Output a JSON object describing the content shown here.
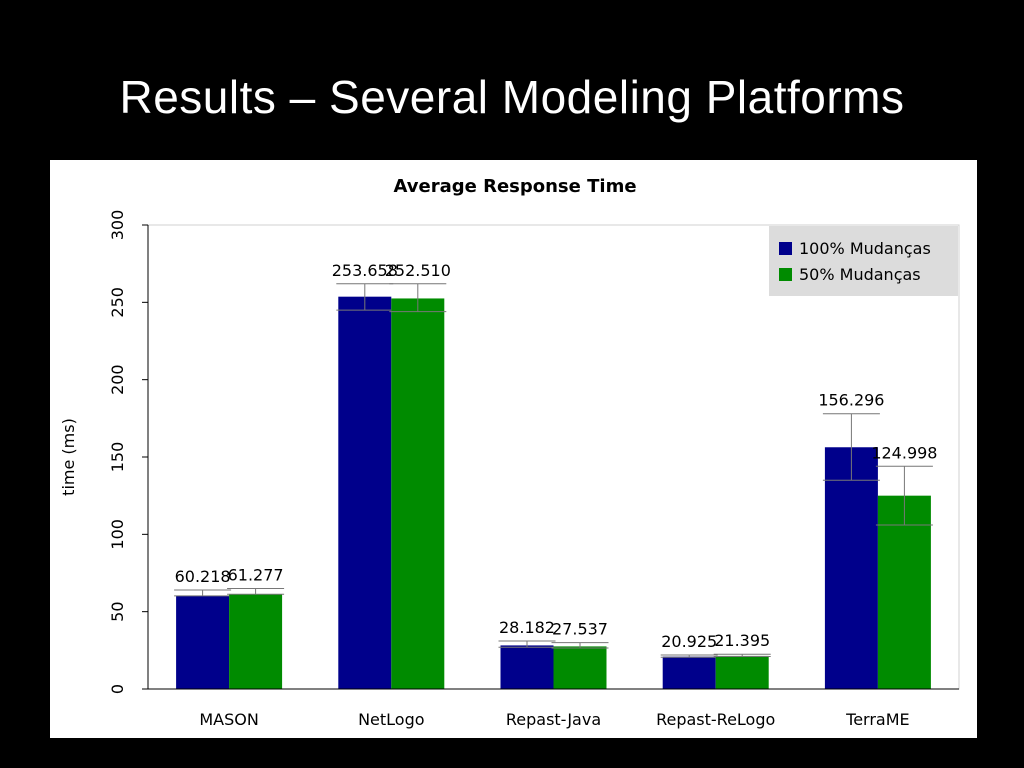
{
  "slide": {
    "title": "Results – Several Modeling Platforms"
  },
  "chart_data": {
    "type": "bar",
    "title": "Average Response Time",
    "xlabel": "",
    "ylabel": "time (ms)",
    "ylim": [
      0,
      300
    ],
    "yticks": [
      0,
      50,
      100,
      150,
      200,
      250,
      300
    ],
    "categories": [
      "MASON",
      "NetLogo",
      "Repast-Java",
      "Repast-ReLogo",
      "TerraME"
    ],
    "series": [
      {
        "name": "100% Mudanças",
        "color": "#00008b",
        "values": [
          60.218,
          253.658,
          28.182,
          20.925,
          156.296
        ],
        "labels": [
          "60.218",
          "253.658",
          "28.182",
          "20.925",
          "156.296"
        ],
        "error_low": [
          60.218,
          245,
          27,
          20.5,
          135
        ],
        "error_high": [
          64,
          262,
          31,
          22,
          178
        ]
      },
      {
        "name": "50% Mudanças",
        "color": "#008b00",
        "values": [
          61.277,
          252.51,
          27.537,
          21.395,
          124.998
        ],
        "labels": [
          "61.277",
          "252.510",
          "27.537",
          "21.395",
          "124.998"
        ],
        "error_low": [
          61.277,
          244,
          26.5,
          21,
          106
        ],
        "error_high": [
          65,
          262,
          30,
          22.5,
          144
        ]
      }
    ],
    "legend": {
      "position": "top-right",
      "background": "#dcdcdc"
    },
    "grid": false
  }
}
